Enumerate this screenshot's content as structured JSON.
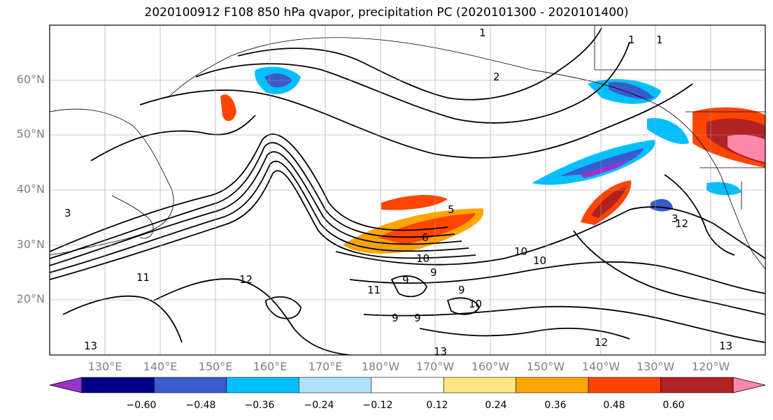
{
  "title": "2020100912 F108 850 hPa qvapor, precipitation PC (2020101300 - 2020101400)",
  "lat_labels": [
    "60°N",
    "50°N",
    "40°N",
    "30°N",
    "20°N"
  ],
  "lon_labels": [
    "130°E",
    "140°E",
    "150°E",
    "160°E",
    "170°E",
    "180°W",
    "170°W",
    "160°W",
    "150°W",
    "140°W",
    "130°W",
    "120°W"
  ],
  "colorbar": {
    "ticks": [
      "−0.60",
      "−0.48",
      "−0.36",
      "−0.24",
      "−0.12",
      "0.12",
      "0.24",
      "0.36",
      "0.48",
      "0.60"
    ],
    "colors": [
      "#9933cc",
      "#00008b",
      "#3a5bcc",
      "#00bfff",
      "#b0e2ff",
      "#ffffff",
      "#ffe680",
      "#ffa500",
      "#ff4500",
      "#b22222",
      "#ff88aa"
    ]
  },
  "contour_labels": [
    "1",
    "1",
    "1",
    "2",
    "3",
    "3",
    "5",
    "6",
    "9",
    "9",
    "9",
    "9",
    "9",
    "10",
    "10",
    "10",
    "10",
    "11",
    "11",
    "12",
    "12",
    "12",
    "13",
    "13",
    "13"
  ]
}
